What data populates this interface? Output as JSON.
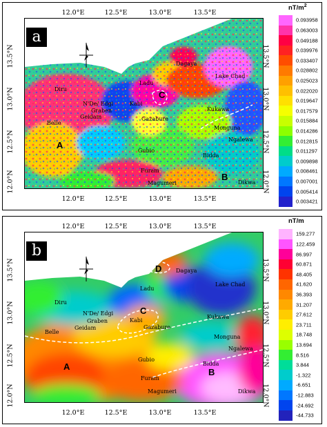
{
  "axes": {
    "lon_ticks": [
      "12.0°E",
      "12.5°E",
      "13.0°E",
      "13.5°E"
    ],
    "lat_ticks": [
      "12.0°N",
      "12.5°N",
      "13.0°N",
      "13.5°N"
    ]
  },
  "panel_a": {
    "label": "a",
    "legend": {
      "unit": "nT/m",
      "superscript": "2",
      "values": [
        "0.093958",
        "0.063003",
        "0.049188",
        "0.039976",
        "0.033407",
        "0.028802",
        "0.025023",
        "0.022020",
        "0.019647",
        "0.017579",
        "0.015884",
        "0.014286",
        "0.012815",
        "0.011297",
        "0.009898",
        "0.008461",
        "0.007001",
        "0.005414",
        "0.003421"
      ],
      "colors": [
        "#ff66ff",
        "#ff33aa",
        "#ff0044",
        "#ff2222",
        "#ff4d00",
        "#ff7a00",
        "#ffa000",
        "#ffc000",
        "#ffe000",
        "#f5ff00",
        "#c8ff00",
        "#8cff00",
        "#33ee33",
        "#00dd88",
        "#00cccc",
        "#00aaff",
        "#0077ff",
        "#0044ee",
        "#2222cc"
      ]
    },
    "places": [
      "Dagaya",
      "Lake Chad",
      "Ladu",
      "Diru",
      "N'De/ Edgi",
      "Graben",
      "Geidam",
      "Kabi",
      "Kukawa",
      "Gazabure",
      "Belle",
      "Monguna",
      "Ngalewa",
      "Gubio",
      "Bidda",
      "Furam",
      "Magumeri",
      "Dikwa"
    ],
    "zones": [
      "A",
      "B",
      "C"
    ]
  },
  "panel_b": {
    "label": "b",
    "legend": {
      "unit": "nT/m",
      "values": [
        "159.277",
        "122.459",
        "86.997",
        "60.871",
        "48.405",
        "41.620",
        "36.393",
        "31.207",
        "27.612",
        "23.711",
        "18.748",
        "13.694",
        "8.516",
        "3.844",
        "-1.322",
        "-6.651",
        "-12.883",
        "-24.692",
        "-44.733"
      ],
      "colors": [
        "#ffb3ff",
        "#ff55ff",
        "#ff0099",
        "#ff0033",
        "#ff3300",
        "#ff6600",
        "#ff8800",
        "#ffaa00",
        "#ffcc00",
        "#ffee00",
        "#ddff00",
        "#99ff00",
        "#33ee33",
        "#00dd99",
        "#00cccc",
        "#00aaff",
        "#0077ff",
        "#0044ee",
        "#2222bb"
      ]
    },
    "places": [
      "Dagaya",
      "Ladu",
      "Lake Chad",
      "Diru",
      "N'De/ Edgi",
      "Graben",
      "Geidam",
      "Kabi",
      "Gazabure",
      "Kukawa",
      "Belle",
      "Monguna",
      "Ngalewa",
      "Gubio",
      "Bidda",
      "Furam",
      "Magumeri",
      "Dikwa"
    ],
    "zones": [
      "A",
      "B",
      "C",
      "D"
    ]
  }
}
